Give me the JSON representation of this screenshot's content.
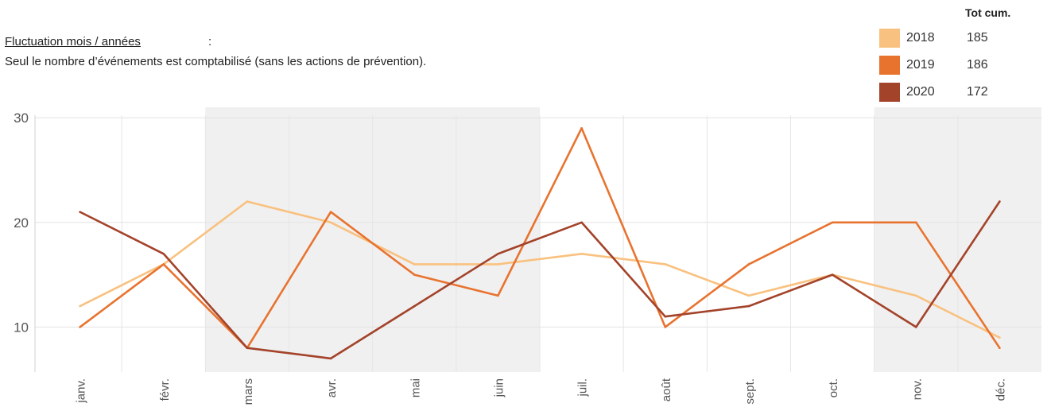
{
  "header": {
    "title": "Fluctuation mois / années",
    "title_suffix": ":",
    "subtitle": "Seul le nombre d’événements est comptabilisé (sans les actions de prévention)."
  },
  "legend": {
    "header": "Tot cum.",
    "items": [
      {
        "year": "2018",
        "total": "185",
        "color": "#F9C17F"
      },
      {
        "year": "2019",
        "total": "186",
        "color": "#E8732F"
      },
      {
        "year": "2020",
        "total": "172",
        "color": "#A3432A"
      }
    ]
  },
  "chart_data": {
    "type": "line",
    "categories": [
      "janv.",
      "févr.",
      "mars",
      "avr.",
      "mai",
      "juin",
      "juil.",
      "août",
      "sept.",
      "oct.",
      "nov.",
      "déc."
    ],
    "series": [
      {
        "name": "2018",
        "color": "#F9C17F",
        "values": [
          12,
          16,
          22,
          20,
          16,
          16,
          17,
          16,
          13,
          15,
          13,
          9
        ]
      },
      {
        "name": "2019",
        "color": "#E8732F",
        "values": [
          10,
          16,
          8,
          21,
          15,
          13,
          29,
          10,
          16,
          20,
          20,
          8
        ]
      },
      {
        "name": "2020",
        "color": "#A3432A",
        "values": [
          21,
          17,
          8,
          7,
          12,
          17,
          20,
          11,
          12,
          15,
          10,
          22
        ]
      }
    ],
    "yticks": [
      10,
      20,
      30
    ],
    "ylim": [
      5.7,
      31
    ],
    "grid": true,
    "shaded_periods": [
      [
        "mars",
        "juin"
      ],
      [
        "nov.",
        "déc."
      ]
    ],
    "legend_position": "top-right"
  }
}
